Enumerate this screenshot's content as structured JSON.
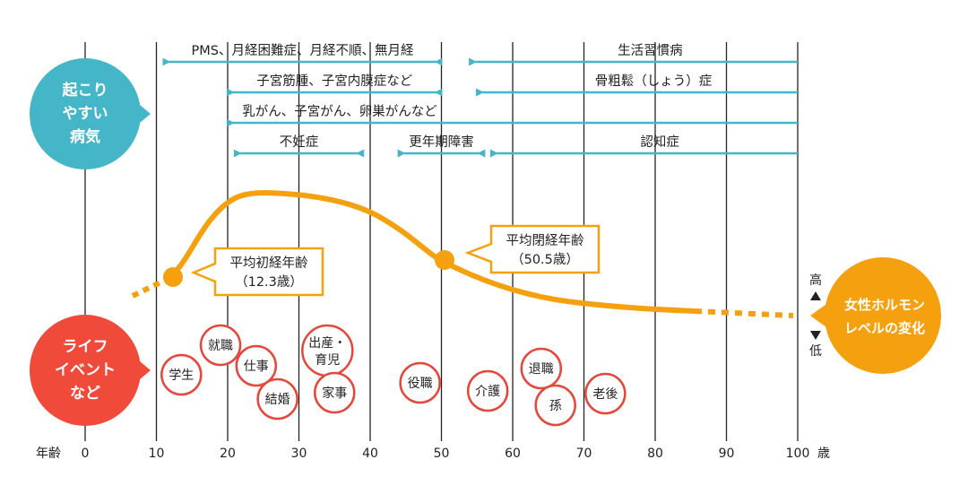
{
  "colors": {
    "teal": "#45b6c8",
    "red": "#ef4a3a",
    "orange": "#f5a10f",
    "gridline": "#222222",
    "event_border": "#e4473b"
  },
  "bubbles": {
    "disease": {
      "lines": [
        "起こり",
        "やすい",
        "病気"
      ]
    },
    "life": {
      "lines": [
        "ライフ",
        "イベント",
        "など"
      ]
    },
    "hormone": {
      "lines": [
        "女性ホルモン",
        "レベルの変化"
      ]
    }
  },
  "hormone_scale": {
    "high": "高",
    "low": "低"
  },
  "axis": {
    "label": "年齢",
    "unit": "歳",
    "ticks": [
      0,
      10,
      20,
      30,
      40,
      50,
      60,
      70,
      80,
      90,
      100
    ]
  },
  "disease_ranges": [
    {
      "label": "PMS、月経困難症、月経不順、無月経",
      "start": 11,
      "end": 50,
      "arrow_start": true,
      "arrow_end": true
    },
    {
      "label": "子宮筋腫、子宮内膜症など",
      "start": 20,
      "end": 50,
      "arrow_start": true,
      "arrow_end": true
    },
    {
      "label": "乳がん、子宮がん、卵巣がんなど",
      "start": 20,
      "end": 100,
      "arrow_start": true,
      "arrow_end": false
    },
    {
      "label": "不妊症",
      "start": 21,
      "end": 39,
      "arrow_start": true,
      "arrow_end": true
    },
    {
      "label": "更年期障害",
      "start": 44,
      "end": 56,
      "arrow_start": true,
      "arrow_end": true
    },
    {
      "label": "生活習慣病",
      "start": 54,
      "end": 100,
      "arrow_start": true,
      "arrow_end": false
    },
    {
      "label": "骨粗鬆（しょう）症",
      "start": 55,
      "end": 100,
      "arrow_start": true,
      "arrow_end": false
    },
    {
      "label": "認知症",
      "start": 57,
      "end": 100,
      "arrow_start": true,
      "arrow_end": false
    }
  ],
  "callouts": {
    "menarche": {
      "lines": [
        "平均初経年齢",
        "（12.3歳）"
      ],
      "age": 12.3
    },
    "menopause": {
      "lines": [
        "平均閉経年齢",
        "（50.5歳）"
      ],
      "age": 50.5
    }
  },
  "life_events": [
    {
      "lines": [
        "学生"
      ],
      "age": 13.5
    },
    {
      "lines": [
        "就職"
      ],
      "age": 19
    },
    {
      "lines": [
        "仕事"
      ],
      "age": 24
    },
    {
      "lines": [
        "結婚"
      ],
      "age": 27
    },
    {
      "lines": [
        "出産・",
        "育児"
      ],
      "age": 34
    },
    {
      "lines": [
        "家事"
      ],
      "age": 35
    },
    {
      "lines": [
        "役職"
      ],
      "age": 47
    },
    {
      "lines": [
        "介護"
      ],
      "age": 56.5
    },
    {
      "lines": [
        "退職"
      ],
      "age": 64
    },
    {
      "lines": [
        "孫"
      ],
      "age": 66
    },
    {
      "lines": [
        "老後"
      ],
      "age": 73
    }
  ]
}
